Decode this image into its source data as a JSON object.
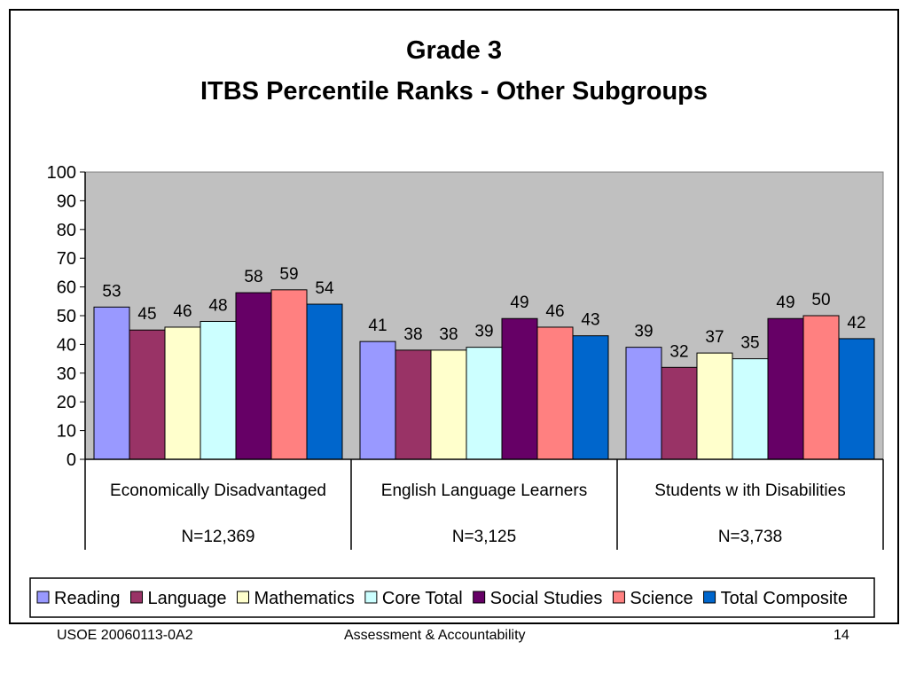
{
  "chart_data": {
    "type": "bar",
    "title": "Grade 3",
    "subtitle": "ITBS Percentile Ranks - Other Subgroups",
    "categories": [
      "Economically Disadvantaged",
      "English Language Learners",
      "Students w ith Disabilities"
    ],
    "category_notes": [
      "N=12,369",
      "N=3,125",
      "N=3,738"
    ],
    "series": [
      {
        "name": "Reading",
        "color": "#9999ff",
        "values": [
          53,
          41,
          39
        ]
      },
      {
        "name": "Language",
        "color": "#993366",
        "values": [
          45,
          38,
          32
        ]
      },
      {
        "name": "Mathematics",
        "color": "#ffffcc",
        "values": [
          46,
          38,
          37
        ]
      },
      {
        "name": "Core Total",
        "color": "#ccffff",
        "values": [
          48,
          39,
          35
        ]
      },
      {
        "name": "Social Studies",
        "color": "#660066",
        "values": [
          58,
          49,
          49
        ]
      },
      {
        "name": "Science",
        "color": "#ff8080",
        "values": [
          59,
          46,
          50
        ]
      },
      {
        "name": "Total Composite",
        "color": "#0066cc",
        "values": [
          54,
          43,
          42
        ]
      }
    ],
    "yticks": [
      "0",
      "10",
      "20",
      "30",
      "40",
      "50",
      "60",
      "70",
      "80",
      "90",
      "100"
    ],
    "ylim": [
      0,
      100
    ],
    "grid": false,
    "plot_background": "#c0c0c0",
    "legend_position": "bottom",
    "data_labels": true
  },
  "footer": {
    "left": "USOE 20060113-0A2",
    "center": "Assessment & Accountability",
    "right": "14"
  }
}
